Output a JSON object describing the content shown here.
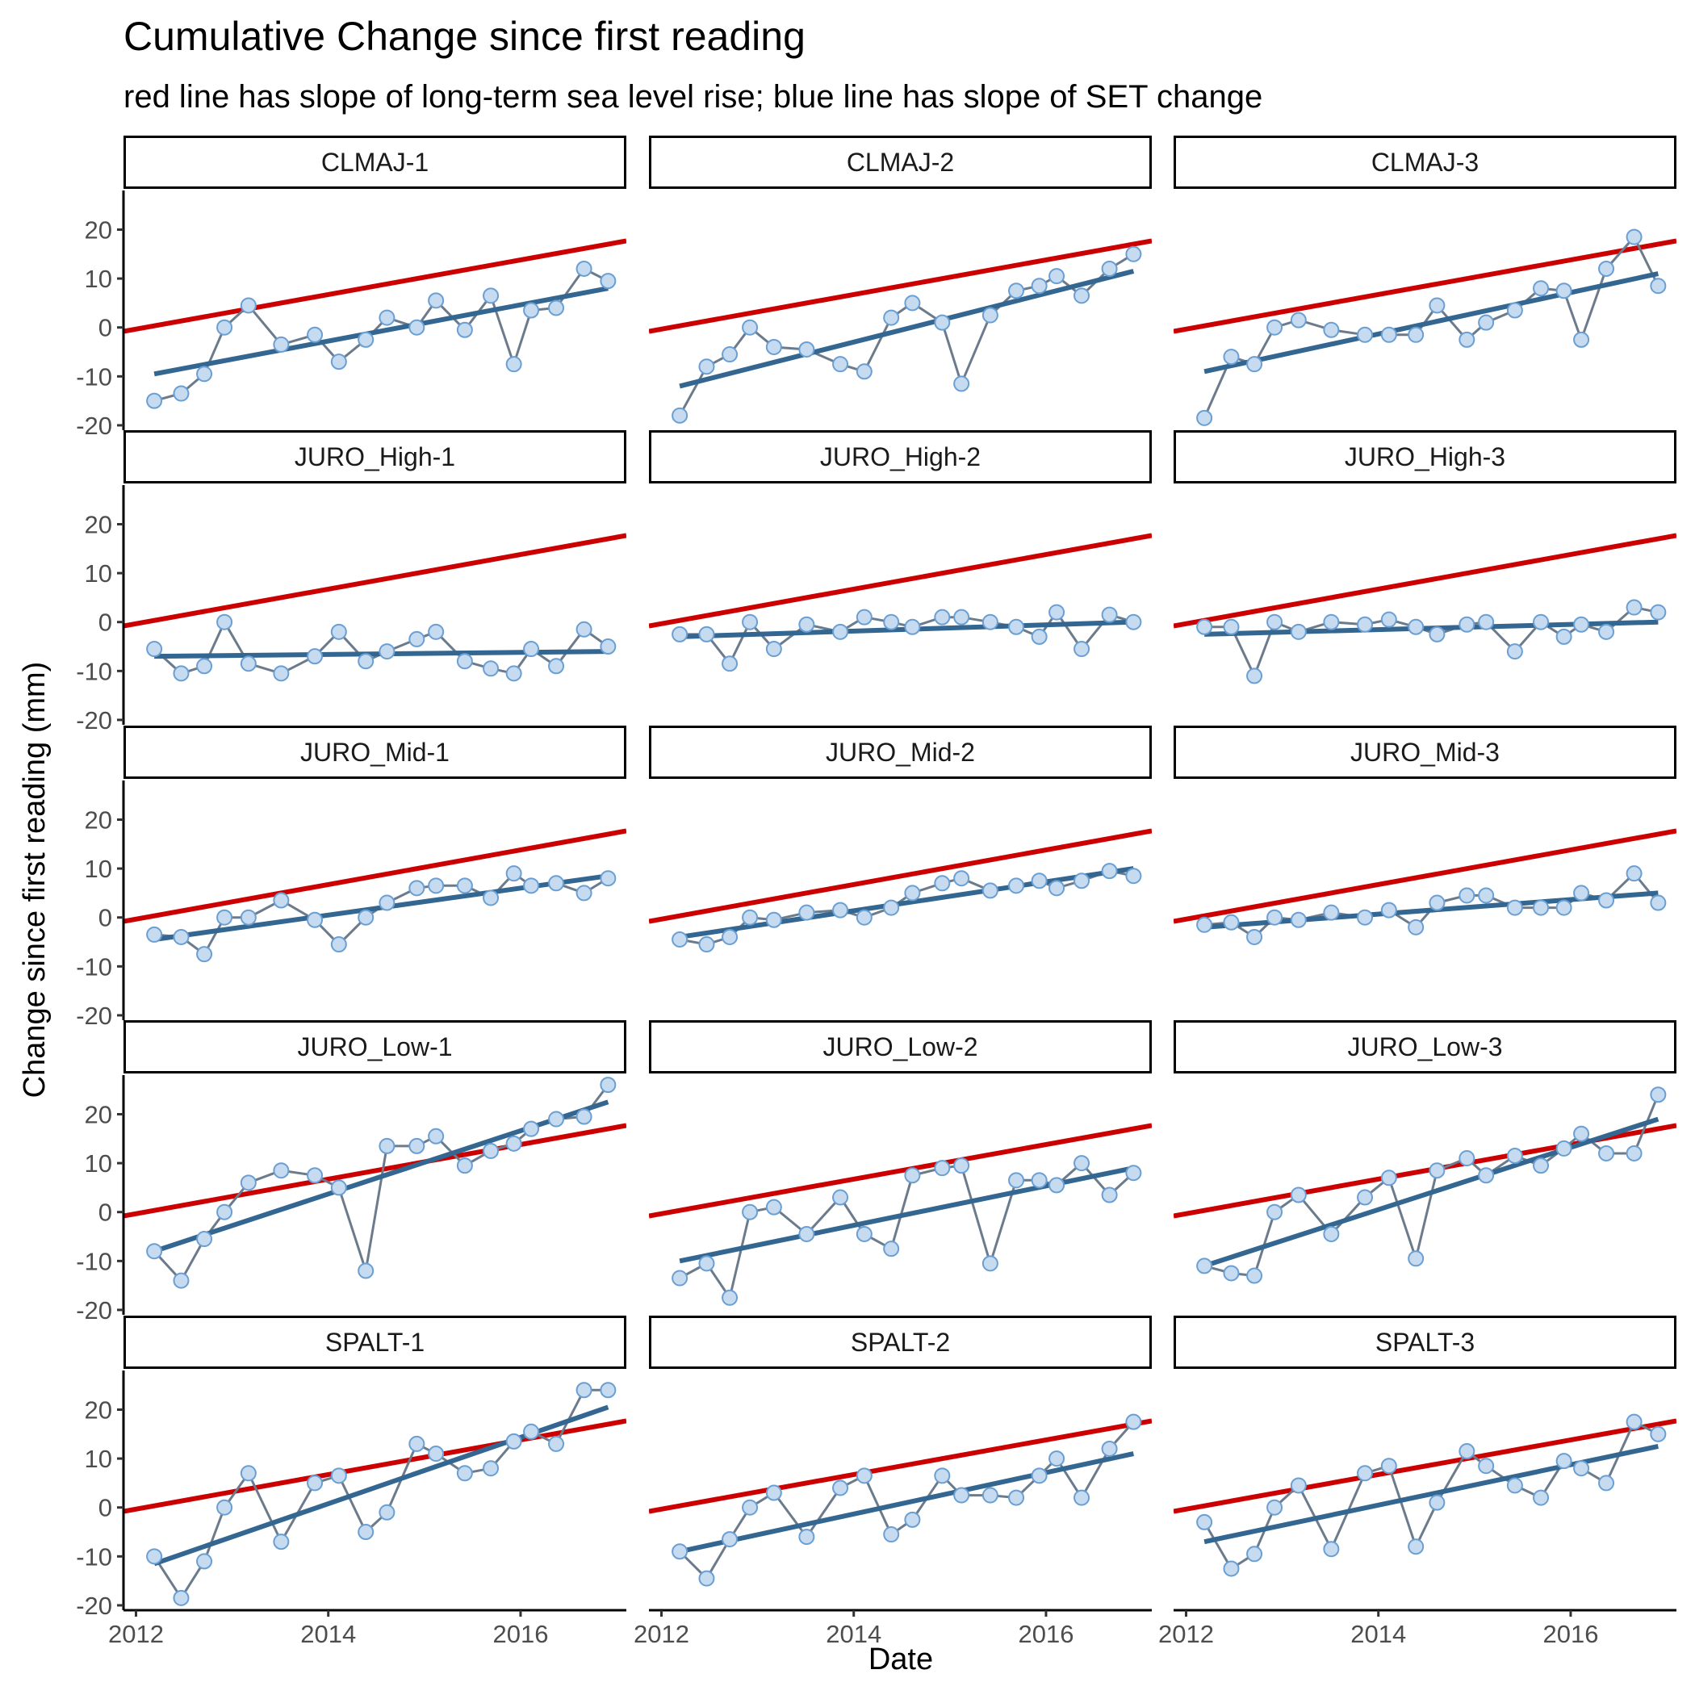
{
  "chart_data": {
    "type": "line",
    "title": "Cumulative Change since first reading",
    "subtitle": "red line has slope of long-term sea level rise; blue line has slope of SET change",
    "xlabel": "Date",
    "ylabel": "Change since first reading (mm)",
    "xlim": [
      2011.87,
      2017.1
    ],
    "ylim": [
      -21,
      28
    ],
    "x_ticks": [
      2012,
      2014,
      2016
    ],
    "x_tick_labels": [
      "2012",
      "2014",
      "2016"
    ],
    "y_ticks": [
      -20,
      -10,
      0,
      10,
      20
    ],
    "y_tick_labels": [
      "-20",
      "-10",
      "0",
      "10",
      "20"
    ],
    "colors": {
      "points_fill": "#c6dbef",
      "points_outline": "#6a9fd4",
      "data_line": "#6b7b8c",
      "set_trend_line": "#336690",
      "sea_level_line": "#cc0000"
    },
    "sea_level_line": {
      "x": [
        2011.87,
        2017.1
      ],
      "y": [
        -0.8,
        17.7
      ]
    },
    "x": [
      2012.19,
      2012.47,
      2012.71,
      2012.92,
      2013.17,
      2013.51,
      2013.86,
      2014.11,
      2014.39,
      2014.61,
      2014.92,
      2015.12,
      2015.42,
      2015.69,
      2015.93,
      2016.11,
      2016.37,
      2016.66,
      2016.91
    ],
    "panels": [
      {
        "label": "CLMAJ-1",
        "y": [
          -15,
          -13.5,
          -9.5,
          0,
          4.5,
          -3.5,
          -1.5,
          -7,
          -2.5,
          2,
          0,
          5.5,
          -0.5,
          6.5,
          -7.5,
          3.5,
          4,
          12,
          9.5
        ],
        "trend": [
          -9.5,
          8
        ]
      },
      {
        "label": "CLMAJ-2",
        "y": [
          -18,
          -8,
          -5.5,
          0,
          -4,
          -4.5,
          -7.5,
          -9,
          2,
          5,
          1,
          -11.5,
          2.5,
          7.5,
          8.5,
          10.5,
          6.5,
          12,
          15
        ],
        "trend": [
          -12,
          11.5
        ]
      },
      {
        "label": "CLMAJ-3",
        "y": [
          -18.5,
          -6,
          -7.5,
          0,
          1.5,
          -0.5,
          -1.5,
          -1.5,
          -1.5,
          4.5,
          -2.5,
          1,
          3.5,
          8,
          7.5,
          -2.5,
          12,
          18.5,
          8.5
        ],
        "trend": [
          -9,
          11
        ]
      },
      {
        "label": "JURO_High-1",
        "y": [
          -5.5,
          -10.5,
          -9,
          0,
          -8.5,
          -10.5,
          -7,
          -2,
          -8,
          -6,
          -3.5,
          -2,
          -8,
          -9.5,
          -10.5,
          -5.5,
          -9,
          -1.5,
          -5
        ],
        "trend": [
          -7,
          -6
        ]
      },
      {
        "label": "JURO_High-2",
        "y": [
          -2.5,
          -2.5,
          -8.5,
          0,
          -5.5,
          -0.5,
          -2,
          1,
          0,
          -1,
          1,
          1,
          0,
          -1,
          -3,
          2,
          -5.5,
          1.5,
          0
        ],
        "trend": [
          -3,
          0
        ]
      },
      {
        "label": "JURO_High-3",
        "y": [
          -1,
          -1,
          -11,
          0,
          -2,
          0,
          -0.5,
          0.5,
          -1,
          -2.5,
          -0.5,
          0,
          -6,
          0,
          -3,
          -0.5,
          -2,
          3,
          2
        ],
        "trend": [
          -2.5,
          0
        ]
      },
      {
        "label": "JURO_Mid-1",
        "y": [
          -3.5,
          -4,
          -7.5,
          0,
          0,
          3.5,
          -0.5,
          -5.5,
          0,
          3,
          6,
          6.5,
          6.5,
          4,
          9,
          6.5,
          7,
          5,
          8
        ],
        "trend": [
          -4.5,
          8.5
        ]
      },
      {
        "label": "JURO_Mid-2",
        "y": [
          -4.5,
          -5.5,
          -4,
          0,
          -0.5,
          1,
          1.5,
          0,
          2,
          5,
          7,
          8,
          5.5,
          6.5,
          7.5,
          6,
          7.5,
          9.5,
          8.5
        ],
        "trend": [
          -4,
          10
        ]
      },
      {
        "label": "JURO_Mid-3",
        "y": [
          -1.5,
          -1,
          -4,
          0,
          -0.5,
          1,
          0,
          1.5,
          -2,
          3,
          4.5,
          4.5,
          2,
          2,
          2,
          5,
          3.5,
          9,
          3
        ],
        "trend": [
          -2,
          5
        ]
      },
      {
        "label": "JURO_Low-1",
        "y": [
          -8,
          -14,
          -5.5,
          0,
          6,
          8.5,
          7.5,
          5,
          -12,
          13.5,
          13.5,
          15.5,
          9.5,
          12.5,
          14,
          17,
          19,
          19.5,
          26
        ],
        "trend": [
          -8,
          22.5
        ]
      },
      {
        "label": "JURO_Low-2",
        "y": [
          -13.5,
          -10.5,
          -17.5,
          0,
          1,
          -4.5,
          3,
          -4.5,
          -7.5,
          7.5,
          9,
          9.5,
          -10.5,
          6.5,
          6.5,
          5.5,
          10,
          3.5,
          8
        ],
        "trend": [
          -10,
          9
        ]
      },
      {
        "label": "JURO_Low-3",
        "y": [
          -11,
          -12.5,
          -13,
          0,
          3.5,
          -4.5,
          3,
          7,
          -9.5,
          8.5,
          11,
          7.5,
          11.5,
          9.5,
          13,
          16,
          12,
          12,
          24
        ],
        "trend": [
          -11,
          19
        ]
      },
      {
        "label": "SPALT-1",
        "y": [
          -10,
          -18.5,
          -11,
          0,
          7,
          -7,
          5,
          6.5,
          -5,
          -1,
          13,
          11,
          7,
          8,
          13.5,
          15.5,
          13,
          24,
          24
        ],
        "trend": [
          -11.5,
          20.5
        ]
      },
      {
        "label": "SPALT-2",
        "y": [
          -9,
          -14.5,
          -6.5,
          0,
          3,
          -6,
          4,
          6.5,
          -5.5,
          -2.5,
          6.5,
          2.5,
          2.5,
          2,
          6.5,
          10,
          2,
          12,
          17.5
        ],
        "trend": [
          -9,
          11
        ]
      },
      {
        "label": "SPALT-3",
        "y": [
          -3,
          -12.5,
          -9.5,
          0,
          4.5,
          -8.5,
          7,
          8.5,
          -8,
          1,
          11.5,
          8.5,
          4.5,
          2,
          9.5,
          8,
          5,
          17.5,
          15
        ],
        "trend": [
          -7,
          12.5
        ]
      }
    ]
  }
}
